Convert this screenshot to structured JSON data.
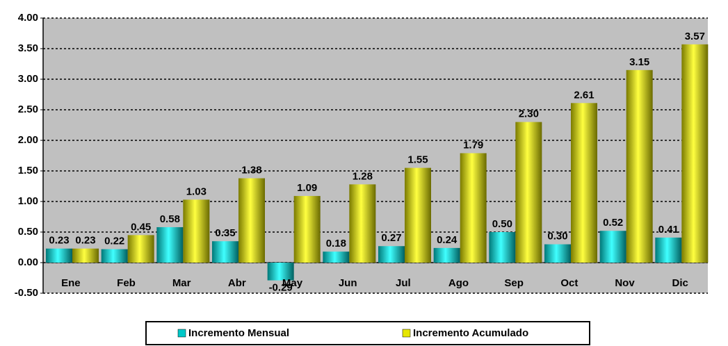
{
  "chart_data": {
    "type": "bar",
    "categories": [
      "Ene",
      "Feb",
      "Mar",
      "Abr",
      "May",
      "Jun",
      "Jul",
      "Ago",
      "Sep",
      "Oct",
      "Nov",
      "Dic"
    ],
    "series": [
      {
        "name": "Incremento Mensual",
        "color": "#00c8c8",
        "values": [
          0.23,
          0.22,
          0.58,
          0.35,
          -0.29,
          0.18,
          0.27,
          0.24,
          0.5,
          0.3,
          0.52,
          0.41
        ],
        "value_labels": [
          "0.23",
          "0.22",
          "0.58",
          "0.35",
          "-0.29",
          "0.18",
          "0.27",
          "0.24",
          "0.50",
          "0.30",
          "0.52",
          "0.41"
        ]
      },
      {
        "name": "Incremento Acumulado",
        "color": "#e6e600",
        "values": [
          0.23,
          0.45,
          1.03,
          1.38,
          1.09,
          1.28,
          1.55,
          1.79,
          2.3,
          2.61,
          3.15,
          3.57
        ],
        "value_labels": [
          "0.23",
          "0.45",
          "1.03",
          "1.38",
          "1.09",
          "1.28",
          "1.55",
          "1.79",
          "2.30",
          "2.61",
          "3.15",
          "3.57"
        ]
      }
    ],
    "ylim": [
      -0.5,
      4.0
    ],
    "yticks": [
      {
        "value": -0.5,
        "label": "-0.50"
      },
      {
        "value": 0,
        "label": "0.00"
      },
      {
        "value": 0.5,
        "label": "0.50"
      },
      {
        "value": 1,
        "label": "1.00"
      },
      {
        "value": 1.5,
        "label": "1.50"
      },
      {
        "value": 2,
        "label": "2.00"
      },
      {
        "value": 2.5,
        "label": "2.50"
      },
      {
        "value": 3,
        "label": "3.00"
      },
      {
        "value": 3.5,
        "label": "3.50"
      },
      {
        "value": 4,
        "label": "4.00"
      }
    ],
    "grid": true,
    "legend": "bottom"
  }
}
